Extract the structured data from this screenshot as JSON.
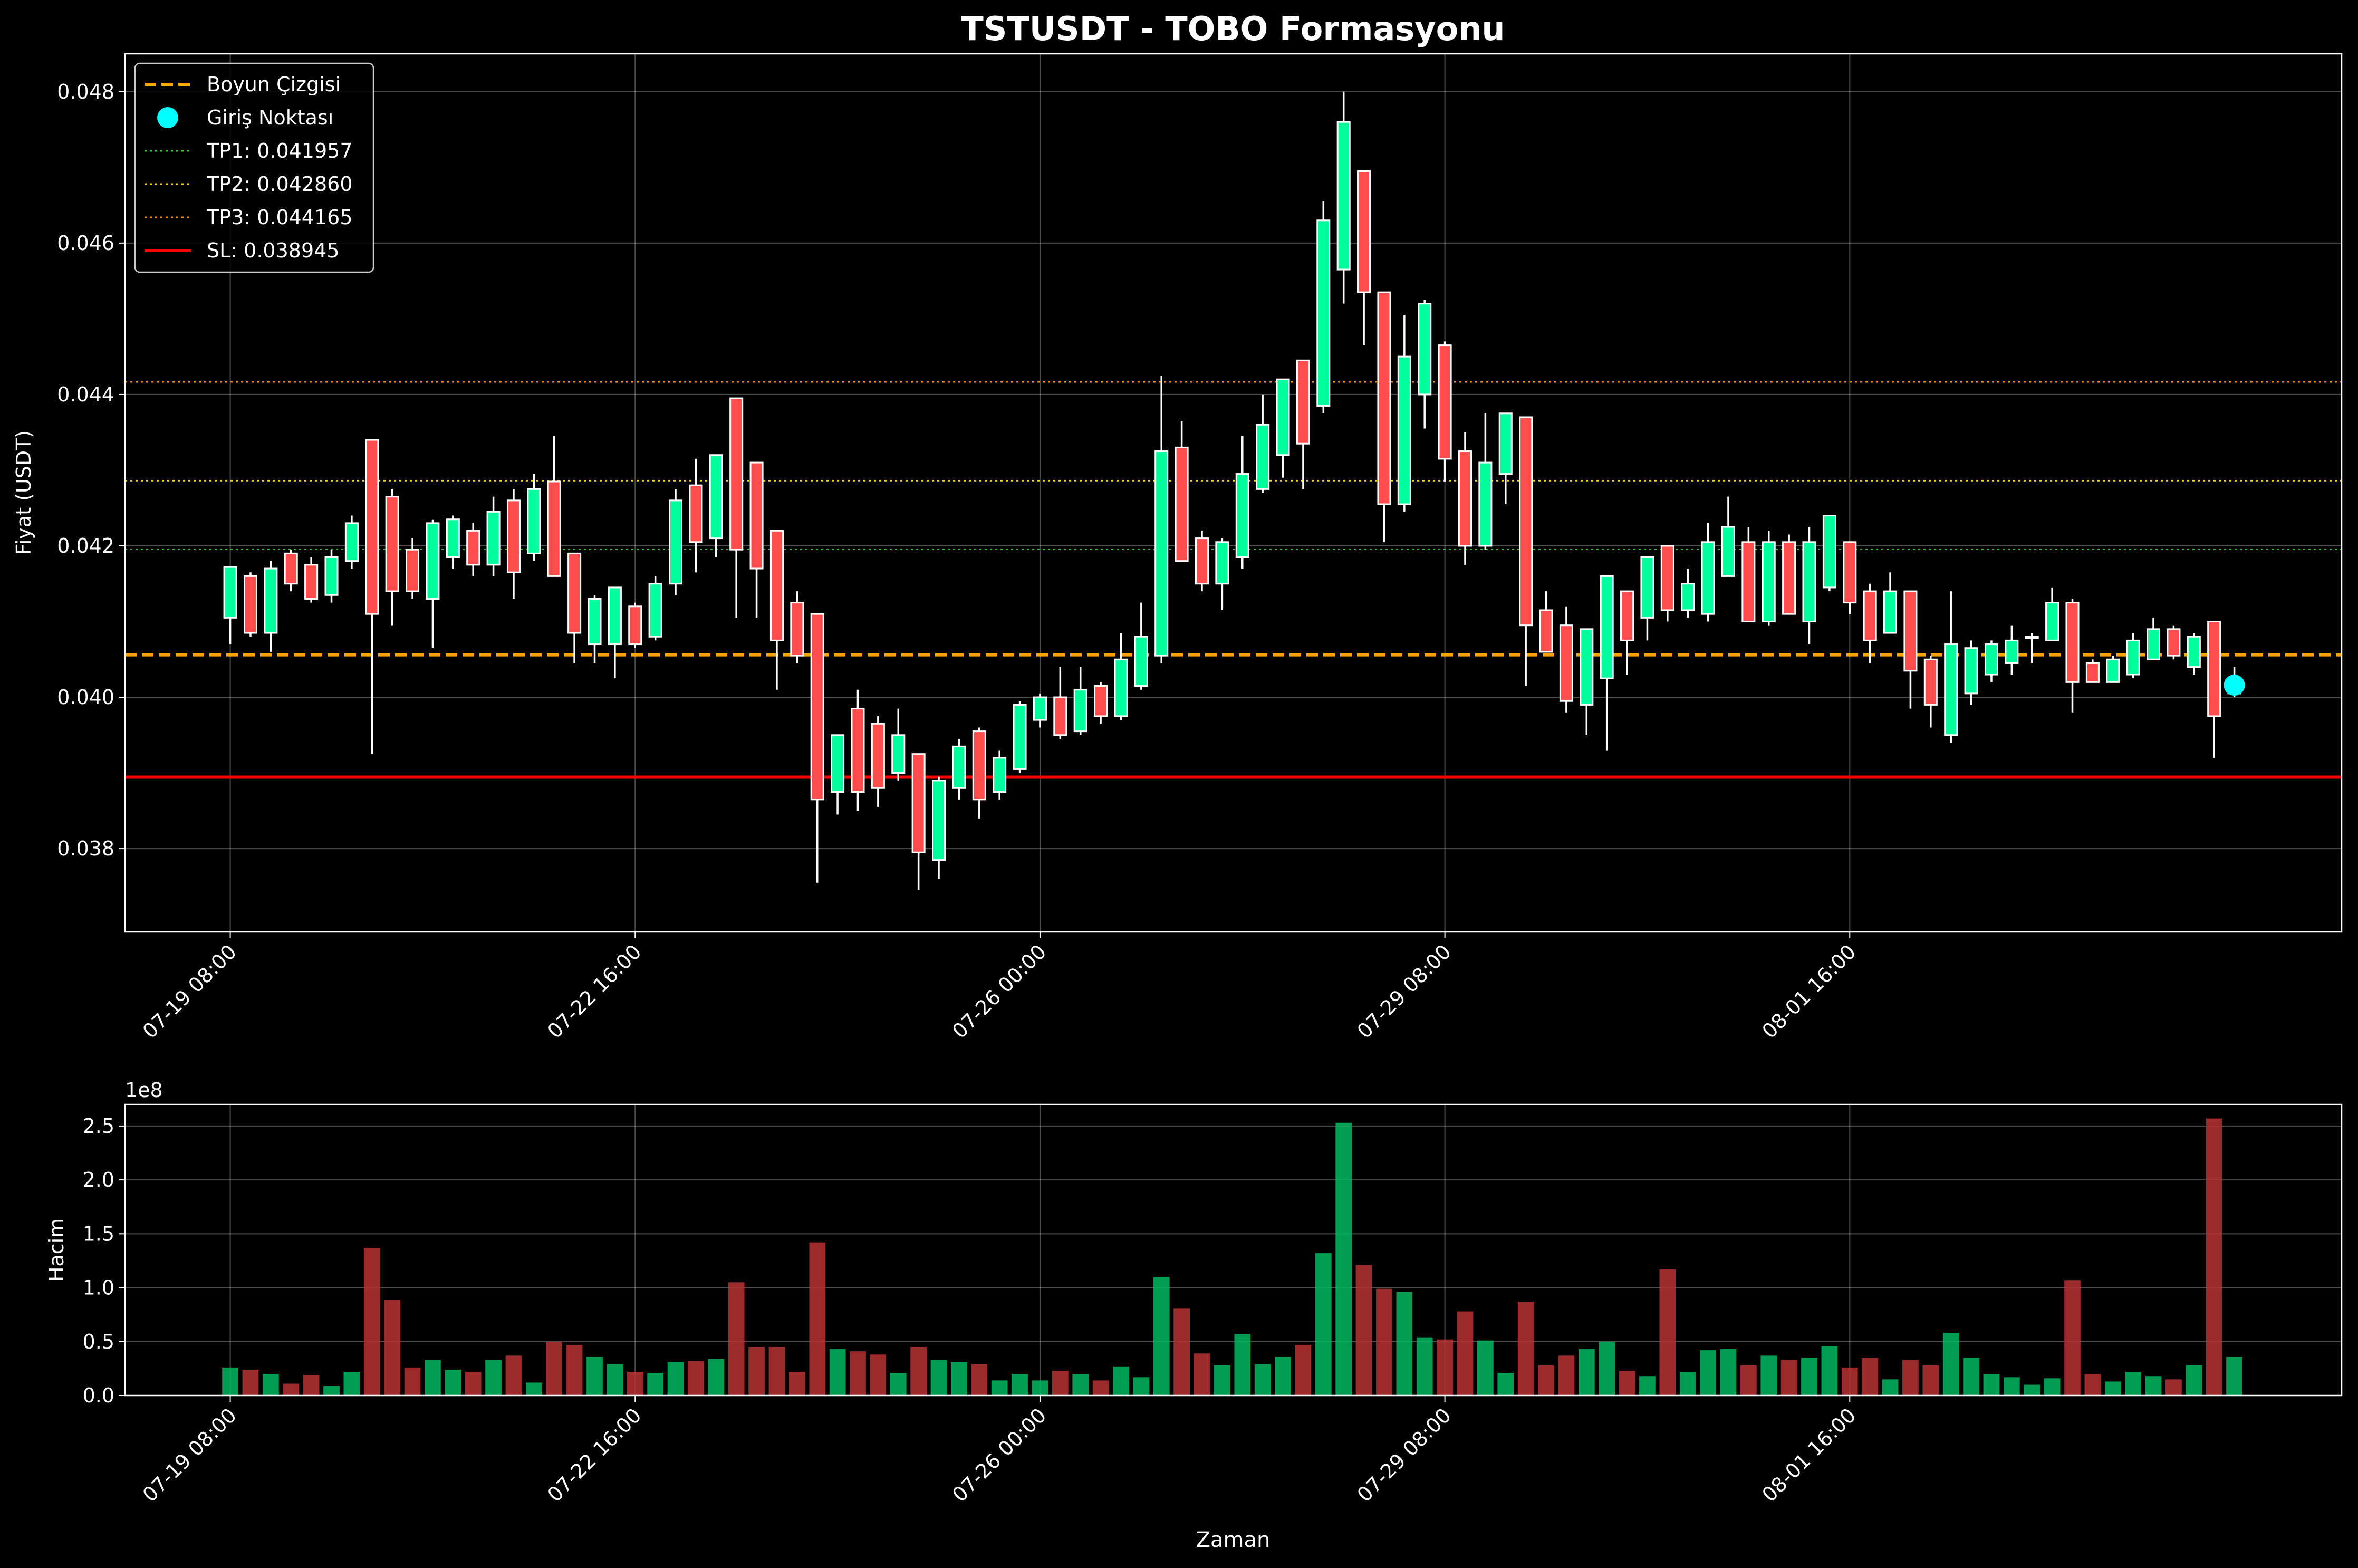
{
  "chart_data": [
    {
      "type": "candlestick",
      "title": "TSTUSDT - TOBO Formasyonu",
      "ylabel": "Fiyat (USDT)",
      "ylim": [
        0.0369,
        0.0485
      ],
      "y_ticks": [
        {
          "value": 0.038,
          "label": "0.038"
        },
        {
          "value": 0.04,
          "label": "0.040"
        },
        {
          "value": 0.042,
          "label": "0.042"
        },
        {
          "value": 0.044,
          "label": "0.044"
        },
        {
          "value": 0.046,
          "label": "0.046"
        },
        {
          "value": 0.048,
          "label": "0.048"
        }
      ],
      "x_ticks": [
        {
          "index": 0,
          "label": "07-19 08:00"
        },
        {
          "index": 20,
          "label": "07-22 16:00"
        },
        {
          "index": 40,
          "label": "07-26 00:00"
        },
        {
          "index": 60,
          "label": "07-29 08:00"
        },
        {
          "index": 80,
          "label": "08-01 16:00"
        }
      ],
      "x_range": [
        -5.2,
        104.3
      ],
      "grid": true,
      "legend_position": "top-left",
      "legend": [
        {
          "label": "Boyun Çizgisi",
          "style": "dashed",
          "color": "#ffa500"
        },
        {
          "label": "Giriş Noktası",
          "style": "marker",
          "color": "#00ffff"
        },
        {
          "label": "TP1: 0.041957",
          "style": "dotted",
          "color": "#32cd32"
        },
        {
          "label": "TP2: 0.042860",
          "style": "dotted",
          "color": "#ffd700"
        },
        {
          "label": "TP3: 0.044165",
          "style": "dotted",
          "color": "#ff8c00"
        },
        {
          "label": "SL: 0.038945",
          "style": "solid",
          "color": "#ff0000"
        }
      ],
      "hlines": [
        {
          "value": 0.04056,
          "color": "#ffa500",
          "style": "dashed"
        },
        {
          "value": 0.041957,
          "color": "#32cd32",
          "style": "dotted"
        },
        {
          "value": 0.04286,
          "color": "#ffd700",
          "style": "dotted"
        },
        {
          "value": 0.044165,
          "color": "#ff8c00",
          "style": "dotted"
        },
        {
          "value": 0.038945,
          "color": "#ff0000",
          "style": "solid"
        }
      ],
      "entry_point": {
        "index": 99,
        "value": 0.04016
      },
      "colors": {
        "up": "#00ff9c",
        "down": "#ff4d4d",
        "wick": "#ffffff"
      },
      "candles": [
        [
          0.04105,
          0.04172,
          0.0407,
          0.04172
        ],
        [
          0.0416,
          0.04085,
          0.0408,
          0.04165
        ],
        [
          0.04085,
          0.0417,
          0.0406,
          0.0418
        ],
        [
          0.0419,
          0.0415,
          0.0414,
          0.04195
        ],
        [
          0.04175,
          0.0413,
          0.04125,
          0.04185
        ],
        [
          0.04135,
          0.04185,
          0.04125,
          0.04195
        ],
        [
          0.0418,
          0.0423,
          0.0417,
          0.0424
        ],
        [
          0.0434,
          0.0411,
          0.03925,
          0.0434
        ],
        [
          0.04265,
          0.0414,
          0.04095,
          0.04275
        ],
        [
          0.04195,
          0.0414,
          0.0413,
          0.0421
        ],
        [
          0.0413,
          0.0423,
          0.04065,
          0.04235
        ],
        [
          0.04185,
          0.04235,
          0.0417,
          0.0424
        ],
        [
          0.0422,
          0.04175,
          0.0416,
          0.0423
        ],
        [
          0.04175,
          0.04245,
          0.0416,
          0.04265
        ],
        [
          0.0426,
          0.04165,
          0.0413,
          0.04275
        ],
        [
          0.0419,
          0.04275,
          0.0418,
          0.04295
        ],
        [
          0.04285,
          0.0416,
          0.0416,
          0.04345
        ],
        [
          0.0419,
          0.04085,
          0.04045,
          0.0419
        ],
        [
          0.0407,
          0.0413,
          0.04045,
          0.04135
        ],
        [
          0.0407,
          0.04145,
          0.04025,
          0.04145
        ],
        [
          0.0412,
          0.0407,
          0.04065,
          0.04125
        ],
        [
          0.0408,
          0.0415,
          0.04075,
          0.0416
        ],
        [
          0.0415,
          0.0426,
          0.04135,
          0.04275
        ],
        [
          0.0428,
          0.04205,
          0.04165,
          0.04315
        ],
        [
          0.0421,
          0.0432,
          0.04185,
          0.0432
        ],
        [
          0.04395,
          0.04195,
          0.04105,
          0.04395
        ],
        [
          0.0431,
          0.0417,
          0.04105,
          0.0431
        ],
        [
          0.0422,
          0.04075,
          0.0401,
          0.0422
        ],
        [
          0.04125,
          0.04055,
          0.04045,
          0.0414
        ],
        [
          0.0411,
          0.03865,
          0.03755,
          0.0411
        ],
        [
          0.03875,
          0.0395,
          0.03845,
          0.0395
        ],
        [
          0.03985,
          0.03875,
          0.0385,
          0.0401
        ],
        [
          0.03965,
          0.0388,
          0.03855,
          0.03975
        ],
        [
          0.039,
          0.0395,
          0.0389,
          0.03985
        ],
        [
          0.03925,
          0.03795,
          0.03745,
          0.03925
        ],
        [
          0.03785,
          0.0389,
          0.0376,
          0.03895
        ],
        [
          0.0388,
          0.03935,
          0.03865,
          0.03945
        ],
        [
          0.03955,
          0.03865,
          0.0384,
          0.0396
        ],
        [
          0.03875,
          0.0392,
          0.03865,
          0.0393
        ],
        [
          0.03905,
          0.0399,
          0.039,
          0.03995
        ],
        [
          0.0397,
          0.04,
          0.0396,
          0.04005
        ],
        [
          0.04,
          0.0395,
          0.03945,
          0.0404
        ],
        [
          0.03955,
          0.0401,
          0.0395,
          0.0404
        ],
        [
          0.04015,
          0.03975,
          0.03965,
          0.0402
        ],
        [
          0.03975,
          0.0405,
          0.0397,
          0.04085
        ],
        [
          0.04015,
          0.0408,
          0.0401,
          0.04125
        ],
        [
          0.04055,
          0.04325,
          0.04045,
          0.04425
        ],
        [
          0.0433,
          0.0418,
          0.0418,
          0.04365
        ],
        [
          0.0421,
          0.0415,
          0.0414,
          0.0422
        ],
        [
          0.0415,
          0.04205,
          0.04115,
          0.0421
        ],
        [
          0.04185,
          0.04295,
          0.0417,
          0.04345
        ],
        [
          0.04275,
          0.0436,
          0.0427,
          0.044
        ],
        [
          0.0432,
          0.0442,
          0.0429,
          0.0442
        ],
        [
          0.04445,
          0.04335,
          0.04275,
          0.04445
        ],
        [
          0.04385,
          0.0463,
          0.04375,
          0.04655
        ],
        [
          0.04565,
          0.0476,
          0.0452,
          0.048
        ],
        [
          0.04695,
          0.04535,
          0.04465,
          0.04695
        ],
        [
          0.04535,
          0.04255,
          0.04205,
          0.04535
        ],
        [
          0.04255,
          0.0445,
          0.04245,
          0.04505
        ],
        [
          0.044,
          0.0452,
          0.04355,
          0.04525
        ],
        [
          0.04465,
          0.04315,
          0.04285,
          0.0447
        ],
        [
          0.04325,
          0.042,
          0.04175,
          0.0435
        ],
        [
          0.042,
          0.0431,
          0.04195,
          0.04375
        ],
        [
          0.04295,
          0.04375,
          0.04255,
          0.04375
        ],
        [
          0.0437,
          0.04095,
          0.04015,
          0.0437
        ],
        [
          0.04115,
          0.0406,
          0.0406,
          0.0414
        ],
        [
          0.04095,
          0.03995,
          0.0398,
          0.0412
        ],
        [
          0.0399,
          0.0409,
          0.0395,
          0.0409
        ],
        [
          0.04025,
          0.0416,
          0.0393,
          0.0416
        ],
        [
          0.0414,
          0.04075,
          0.0403,
          0.0414
        ],
        [
          0.04105,
          0.04185,
          0.04075,
          0.04185
        ],
        [
          0.042,
          0.04115,
          0.041,
          0.042
        ],
        [
          0.04115,
          0.0415,
          0.04105,
          0.0417
        ],
        [
          0.0411,
          0.04205,
          0.041,
          0.0423
        ],
        [
          0.0416,
          0.04225,
          0.0416,
          0.04265
        ],
        [
          0.04205,
          0.041,
          0.041,
          0.04225
        ],
        [
          0.041,
          0.04205,
          0.04095,
          0.0422
        ],
        [
          0.04205,
          0.0411,
          0.0411,
          0.04215
        ],
        [
          0.041,
          0.04205,
          0.0407,
          0.04225
        ],
        [
          0.04145,
          0.0424,
          0.0414,
          0.0424
        ],
        [
          0.04205,
          0.04125,
          0.0411,
          0.04205
        ],
        [
          0.0414,
          0.04075,
          0.04045,
          0.0415
        ],
        [
          0.04085,
          0.0414,
          0.04085,
          0.04165
        ],
        [
          0.0414,
          0.04035,
          0.03985,
          0.0414
        ],
        [
          0.0405,
          0.0399,
          0.0396,
          0.04055
        ],
        [
          0.0395,
          0.0407,
          0.0394,
          0.0414
        ],
        [
          0.04005,
          0.04065,
          0.0399,
          0.04075
        ],
        [
          0.0403,
          0.0407,
          0.0402,
          0.04075
        ],
        [
          0.04045,
          0.04075,
          0.0403,
          0.04095
        ],
        [
          0.0408,
          0.0408,
          0.04045,
          0.04085
        ],
        [
          0.04075,
          0.04125,
          0.04075,
          0.04145
        ],
        [
          0.04125,
          0.0402,
          0.0398,
          0.0413
        ],
        [
          0.04045,
          0.0402,
          0.0402,
          0.0405
        ],
        [
          0.0402,
          0.0405,
          0.0402,
          0.04055
        ],
        [
          0.0403,
          0.04075,
          0.04025,
          0.04085
        ],
        [
          0.0405,
          0.0409,
          0.0405,
          0.04105
        ],
        [
          0.0409,
          0.04055,
          0.0405,
          0.04095
        ],
        [
          0.0404,
          0.0408,
          0.0403,
          0.04085
        ],
        [
          0.041,
          0.03975,
          0.0392,
          0.041
        ],
        [
          0.04005,
          0.04016,
          0.04,
          0.0404
        ]
      ]
    },
    {
      "type": "bar",
      "xlabel": "Zaman",
      "ylabel": "Hacim",
      "scale_label": "1e8",
      "ylim": [
        0,
        2.7
      ],
      "y_ticks": [
        {
          "value": 0,
          "label": "0.0"
        },
        {
          "value": 0.5,
          "label": "0.5"
        },
        {
          "value": 1.0,
          "label": "1.0"
        },
        {
          "value": 1.5,
          "label": "1.5"
        },
        {
          "value": 2.0,
          "label": "2.0"
        },
        {
          "value": 2.5,
          "label": "2.5"
        }
      ],
      "grid": true,
      "colors": {
        "up": "#00b862",
        "down": "#b83232"
      },
      "values": [
        0.26,
        0.24,
        0.2,
        0.11,
        0.19,
        0.09,
        0.22,
        1.37,
        0.89,
        0.26,
        0.33,
        0.24,
        0.22,
        0.33,
        0.37,
        0.12,
        0.5,
        0.47,
        0.36,
        0.29,
        0.22,
        0.21,
        0.31,
        0.32,
        0.34,
        1.05,
        0.45,
        0.45,
        0.22,
        1.42,
        0.43,
        0.41,
        0.38,
        0.21,
        0.45,
        0.33,
        0.31,
        0.29,
        0.14,
        0.2,
        0.14,
        0.23,
        0.2,
        0.14,
        0.27,
        0.17,
        1.1,
        0.81,
        0.39,
        0.28,
        0.57,
        0.29,
        0.36,
        0.47,
        1.32,
        2.53,
        1.21,
        0.99,
        0.96,
        0.54,
        0.52,
        0.78,
        0.51,
        0.21,
        0.87,
        0.28,
        0.37,
        0.43,
        0.5,
        0.23,
        0.18,
        1.17,
        0.22,
        0.42,
        0.43,
        0.28,
        0.37,
        0.33,
        0.35,
        0.46,
        0.26,
        0.35,
        0.15,
        0.33,
        0.28,
        0.58,
        0.35,
        0.2,
        0.17,
        0.1,
        0.16,
        1.07,
        0.2,
        0.13,
        0.22,
        0.18,
        0.15,
        0.28,
        2.57,
        0.36
      ]
    }
  ]
}
